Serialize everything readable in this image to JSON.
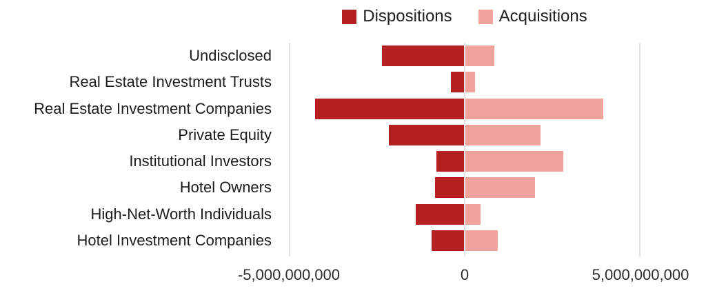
{
  "legend": {
    "items": [
      {
        "label": "Dispositions",
        "color": "#b22020"
      },
      {
        "label": "Acquisitions",
        "color": "#f2a29d"
      }
    ]
  },
  "chart_data": {
    "type": "bar",
    "orientation": "horizontal-diverging",
    "title": "",
    "xlabel": "",
    "ylabel": "",
    "xlim": [
      -5000000000,
      5000000000
    ],
    "grid": "vertical gridlines at ticks only",
    "legend_position": "top-center",
    "categories": [
      "Undisclosed",
      "Real Estate Investment Trusts",
      "Real Estate Investment Companies",
      "Private Equity",
      "Institutional Investors",
      "Hotel Owners",
      "High-Net-Worth Individuals",
      "Hotel Investment Companies"
    ],
    "series": [
      {
        "name": "Dispositions",
        "color": "#b22020",
        "values": [
          -2350000000,
          -400000000,
          -4250000000,
          -2150000000,
          -800000000,
          -850000000,
          -1400000000,
          -950000000
        ]
      },
      {
        "name": "Acquisitions",
        "color": "#f2a29d",
        "values": [
          850000000,
          300000000,
          3950000000,
          2150000000,
          2800000000,
          2000000000,
          450000000,
          950000000
        ]
      }
    ],
    "x_ticks": [
      {
        "value": -5000000000,
        "label": "-5,000,000,000"
      },
      {
        "value": 0,
        "label": "0"
      },
      {
        "value": 5000000000,
        "label": "5,000,000,000"
      }
    ]
  }
}
